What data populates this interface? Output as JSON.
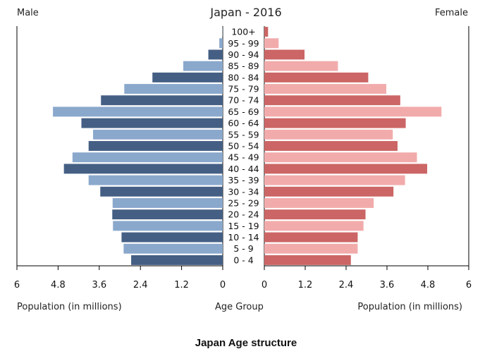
{
  "header": {
    "left_label": "Male",
    "title": "Japan - 2016",
    "right_label": "Female"
  },
  "footer": {
    "left_axis_label": "Population (in millions)",
    "center_label": "Age Group",
    "right_axis_label": "Population (in millions)"
  },
  "caption": "Japan Age structure",
  "colors": {
    "male_dark": "#455f84",
    "male_light": "#8aa8cc",
    "female_dark": "#cc6565",
    "female_light": "#f2abab"
  },
  "chart_data": {
    "type": "bar",
    "orientation": "horizontal",
    "title": "Japan - 2016",
    "xlabel": "Population (in millions)",
    "ylabel": "Age Group",
    "xlim": [
      0,
      6
    ],
    "x_ticks": [
      "6",
      "4.8",
      "3.6",
      "2.4",
      "1.2",
      "0"
    ],
    "x_ticks_right": [
      "0",
      "1.2",
      "2.4",
      "3.6",
      "4.8",
      "6"
    ],
    "categories": [
      "100+",
      "95 - 99",
      "90 - 94",
      "85 - 89",
      "80 - 84",
      "75 - 79",
      "70 - 74",
      "65 - 69",
      "60 - 64",
      "55 - 59",
      "50 - 54",
      "45 - 49",
      "40 - 44",
      "35 - 39",
      "30 - 34",
      "25 - 29",
      "20 - 24",
      "15 - 19",
      "10 - 14",
      "5 - 9",
      "0 - 4"
    ],
    "series": [
      {
        "name": "Male",
        "values": [
          0.01,
          0.1,
          0.42,
          1.15,
          2.05,
          2.87,
          3.55,
          4.95,
          4.12,
          3.78,
          3.91,
          4.38,
          4.63,
          3.91,
          3.57,
          3.21,
          3.22,
          3.2,
          2.95,
          2.89,
          2.67
        ]
      },
      {
        "name": "Female",
        "values": [
          0.11,
          0.42,
          1.18,
          2.16,
          3.05,
          3.58,
          3.99,
          5.2,
          4.15,
          3.77,
          3.91,
          4.48,
          4.78,
          4.13,
          3.79,
          3.21,
          2.97,
          2.91,
          2.74,
          2.74,
          2.54
        ]
      }
    ]
  }
}
